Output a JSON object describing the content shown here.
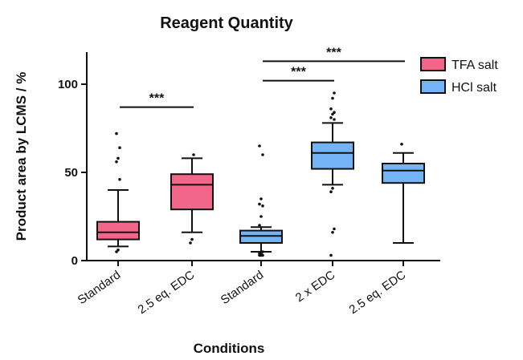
{
  "chart_data": {
    "type": "box",
    "title": "Reagent Quantity",
    "xlabel": "Conditions",
    "ylabel": "Product area by LCMS / %",
    "ylim": [
      0,
      120
    ],
    "yticks": [
      0,
      50,
      100
    ],
    "grid": false,
    "legend_position": "top-right",
    "categories": [
      "Standard",
      "2.5 eq. EDC",
      "Standard",
      "2 x EDC",
      "2.5 eq. EDC"
    ],
    "series": [
      {
        "name": "TFA salt",
        "color": "#f2668a"
      },
      {
        "name": "HCl salt",
        "color": "#74b3f5"
      }
    ],
    "boxes": [
      {
        "category": "Standard",
        "series": "TFA salt",
        "whisker_low": 8,
        "q1": 12,
        "median": 16,
        "q3": 22,
        "whisker_high": 40,
        "outliers": [
          5,
          6,
          46,
          56,
          58,
          64,
          72
        ]
      },
      {
        "category": "2.5 eq. EDC",
        "series": "TFA salt",
        "whisker_low": 16,
        "q1": 29,
        "median": 43,
        "q3": 49,
        "whisker_high": 58,
        "outliers": [
          10,
          12,
          60
        ]
      },
      {
        "category": "Standard",
        "series": "HCl salt",
        "whisker_low": 5,
        "q1": 10,
        "median": 14,
        "q3": 17,
        "whisker_high": 19,
        "outliers": [
          3,
          3,
          3,
          4,
          4,
          5,
          20,
          25,
          31,
          32,
          35,
          60,
          65
        ]
      },
      {
        "category": "2 x EDC",
        "series": "HCl salt",
        "whisker_low": 43,
        "q1": 52,
        "median": 61,
        "q3": 67,
        "whisker_high": 78,
        "outliers": [
          3,
          16,
          18,
          39,
          41,
          80,
          81,
          83,
          84,
          86,
          92,
          95
        ]
      },
      {
        "category": "2.5 eq. EDC",
        "series": "HCl salt",
        "whisker_low": 10,
        "q1": 44,
        "median": 51,
        "q3": 55,
        "whisker_high": 61,
        "outliers": [
          66
        ]
      }
    ],
    "significance": [
      {
        "from": 0,
        "to": 1,
        "y": 87,
        "label": "***"
      },
      {
        "from": 2,
        "to": 3,
        "y": 102,
        "label": "***"
      },
      {
        "from": 2,
        "to": 4,
        "y": 113,
        "label": "***"
      }
    ]
  }
}
